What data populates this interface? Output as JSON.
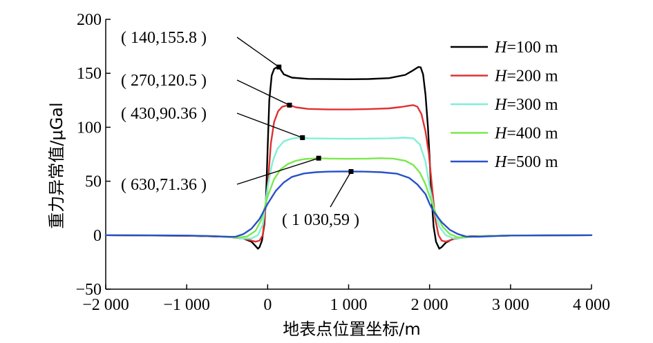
{
  "chart_data": {
    "type": "line",
    "xlabel": "地表点位置坐标/m",
    "ylabel": "重力异常值/μGal",
    "xlim": [
      -2000,
      4000
    ],
    "ylim": [
      -50,
      200
    ],
    "x_ticks": [
      -2000,
      -1000,
      0,
      1000,
      2000,
      3000,
      4000
    ],
    "x_tick_labels": [
      "−2 000",
      "−1 000",
      "0",
      "1 000",
      "2 000",
      "3 000",
      "4 000"
    ],
    "y_ticks": [
      -50,
      0,
      50,
      100,
      150,
      200
    ],
    "y_tick_labels": [
      "−50",
      "0",
      "50",
      "100",
      "150",
      "200"
    ],
    "grid": false,
    "legend_position": "top-right",
    "series": [
      {
        "name": "H=100 m",
        "name_italic": "H",
        "name_rest": "=100 m",
        "color": "#000000",
        "x": [
          -2000,
          -1000,
          -500,
          -300,
          -200,
          -150,
          -120,
          -100,
          -70,
          -40,
          -20,
          0,
          20,
          50,
          80,
          110,
          140,
          200,
          300,
          500,
          750,
          1000,
          1250,
          1500,
          1700,
          1780,
          1860,
          1890,
          1920,
          1950,
          1980,
          2000,
          2020,
          2050,
          2080,
          2120,
          2150,
          2200,
          2300,
          2500,
          3000,
          4000
        ],
        "y": [
          0,
          -0.5,
          -1.5,
          -3,
          -6,
          -10,
          -12.5,
          -11,
          -5,
          10,
          35,
          80,
          125,
          148,
          154,
          155.5,
          155.8,
          149,
          146,
          144.8,
          144.6,
          144.5,
          144.7,
          145.5,
          148.5,
          152,
          155.8,
          155.5,
          149,
          130,
          100,
          72,
          40,
          8,
          -6,
          -12.5,
          -11,
          -7,
          -3,
          -1,
          -0.3,
          0
        ]
      },
      {
        "name": "H=200 m",
        "name_italic": "H",
        "name_rest": "=200 m",
        "color": "#e03030",
        "x": [
          -2000,
          -1000,
          -500,
          -300,
          -200,
          -150,
          -100,
          -60,
          -20,
          0,
          40,
          80,
          130,
          180,
          230,
          270,
          350,
          500,
          750,
          1000,
          1250,
          1500,
          1650,
          1750,
          1800,
          1850,
          1900,
          1950,
          1990,
          2030,
          2070,
          2110,
          2150,
          2200,
          2300,
          2500,
          3000,
          4000
        ],
        "y": [
          0,
          -0.5,
          -1.5,
          -3,
          -5,
          -6,
          -5,
          0,
          30,
          45,
          85,
          105,
          115,
          119,
          120,
          120.5,
          118.5,
          117,
          116.5,
          116.5,
          116.8,
          117.5,
          118.8,
          120,
          120.5,
          119,
          112,
          96,
          76,
          45,
          15,
          0,
          -5,
          -6,
          -3.5,
          -1.2,
          -0.3,
          0
        ]
      },
      {
        "name": "H=300 m",
        "name_italic": "H",
        "name_rest": "=300 m",
        "color": "#7ff0d4",
        "x": [
          -2000,
          -1000,
          -600,
          -400,
          -300,
          -200,
          -120,
          -60,
          0,
          60,
          120,
          200,
          300,
          380,
          430,
          500,
          750,
          1000,
          1250,
          1500,
          1700,
          1800,
          1880,
          1950,
          2000,
          2060,
          2120,
          2200,
          2300,
          2400,
          2500,
          3000,
          4000
        ],
        "y": [
          0,
          -0.3,
          -1,
          -2,
          -3,
          -3,
          0,
          10,
          45,
          68,
          80,
          87,
          89.5,
          90.3,
          90.36,
          89.8,
          89.5,
          89.3,
          89.5,
          89.8,
          90.36,
          89.8,
          84,
          68,
          45,
          22,
          8,
          0,
          -3,
          -2.5,
          -1.5,
          -0.3,
          0
        ]
      },
      {
        "name": "H=400 m",
        "name_italic": "H",
        "name_rest": "=400 m",
        "color": "#7ae84a",
        "x": [
          -2000,
          -1000,
          -600,
          -450,
          -350,
          -250,
          -150,
          -80,
          0,
          80,
          160,
          250,
          350,
          450,
          550,
          630,
          750,
          1000,
          1250,
          1400,
          1550,
          1700,
          1800,
          1880,
          1950,
          2000,
          2080,
          2160,
          2250,
          2350,
          2450,
          2600,
          3000,
          4000
        ],
        "y": [
          0,
          -0.3,
          -1,
          -2,
          -2,
          -1,
          4,
          14,
          36,
          52,
          61,
          66,
          69,
          70.5,
          71,
          71.36,
          71,
          70.8,
          71,
          71.36,
          71,
          69,
          65,
          58,
          47,
          36,
          20,
          8,
          1,
          -2,
          -2,
          -1,
          -0.2,
          0
        ]
      },
      {
        "name": "H=500 m",
        "name_italic": "H",
        "name_rest": "=500 m",
        "color": "#2850c8",
        "x": [
          -2000,
          -1000,
          -700,
          -500,
          -400,
          -300,
          -200,
          -100,
          0,
          100,
          200,
          300,
          450,
          600,
          750,
          900,
          1030,
          1200,
          1400,
          1600,
          1750,
          1850,
          1950,
          2000,
          2050,
          2150,
          2250,
          2350,
          2450,
          2600,
          2800,
          3000,
          4000
        ],
        "y": [
          0,
          -0.3,
          -0.8,
          -1.5,
          -1.5,
          1,
          6,
          15,
          29,
          41,
          49,
          54,
          57.2,
          58.4,
          58.9,
          59,
          59,
          58.9,
          58.4,
          57,
          53,
          47,
          38,
          29,
          22,
          12,
          5,
          1,
          -1.2,
          -1.5,
          -0.8,
          -0.3,
          0
        ]
      }
    ],
    "annotations": [
      {
        "text": "( 140,155.8 )",
        "x": 140,
        "y": 155.8,
        "series": "H=100 m"
      },
      {
        "text": "( 270,120.5 )",
        "x": 270,
        "y": 120.5,
        "series": "H=200 m"
      },
      {
        "text": "( 430,90.36 )",
        "x": 430,
        "y": 90.36,
        "series": "H=300 m"
      },
      {
        "text": "( 630,71.36 )",
        "x": 630,
        "y": 71.36,
        "series": "H=400 m"
      },
      {
        "text": "( 1 030,59 )",
        "x": 1030,
        "y": 59,
        "series": "H=500 m"
      }
    ]
  }
}
